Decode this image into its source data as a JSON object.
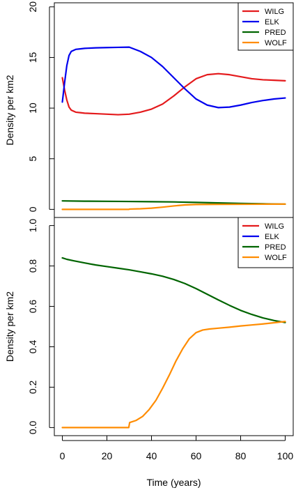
{
  "chart_data": [
    {
      "type": "line",
      "title": "",
      "xlabel": "",
      "ylabel": "Density per km2",
      "xlim": [
        -3.6,
        103.6
      ],
      "ylim": [
        -0.8,
        20.4
      ],
      "x_ticks": [],
      "y_ticks": [
        0,
        5,
        10,
        15,
        20
      ],
      "y_tick_labels": [
        "0",
        "5",
        "10",
        "15",
        "20"
      ],
      "legend_position": "top-right",
      "series": [
        {
          "name": "WILG",
          "color": "#e41a1c",
          "x": [
            0,
            1,
            2,
            3,
            4,
            6,
            8,
            10,
            15,
            20,
            25,
            30,
            35,
            40,
            45,
            50,
            55,
            60,
            65,
            70,
            75,
            80,
            85,
            90,
            95,
            100
          ],
          "y": [
            13.0,
            11.8,
            10.8,
            10.1,
            9.8,
            9.6,
            9.55,
            9.5,
            9.45,
            9.4,
            9.35,
            9.4,
            9.6,
            9.9,
            10.4,
            11.2,
            12.1,
            12.9,
            13.3,
            13.4,
            13.3,
            13.1,
            12.9,
            12.8,
            12.75,
            12.7
          ]
        },
        {
          "name": "ELK",
          "color": "#0000ee",
          "x": [
            0,
            1,
            2,
            3,
            4,
            6,
            8,
            10,
            15,
            20,
            25,
            30,
            35,
            40,
            45,
            50,
            55,
            60,
            65,
            70,
            75,
            80,
            85,
            90,
            95,
            100
          ],
          "y": [
            10.6,
            12.5,
            14.2,
            15.2,
            15.6,
            15.8,
            15.85,
            15.9,
            15.95,
            15.98,
            16.0,
            16.02,
            15.6,
            15.0,
            14.1,
            13.0,
            11.9,
            10.9,
            10.3,
            10.05,
            10.1,
            10.3,
            10.55,
            10.75,
            10.9,
            11.0
          ]
        },
        {
          "name": "PRED",
          "color": "#006400",
          "x": [
            0,
            10,
            20,
            30,
            40,
            50,
            60,
            70,
            80,
            90,
            100
          ],
          "y": [
            0.84,
            0.81,
            0.795,
            0.78,
            0.76,
            0.735,
            0.69,
            0.635,
            0.585,
            0.55,
            0.52
          ]
        },
        {
          "name": "WOLF",
          "color": "#ff8c00",
          "x": [
            0,
            10,
            20,
            29.9,
            30.1,
            35,
            40,
            45,
            50,
            55,
            60,
            65,
            70,
            80,
            90,
            100
          ],
          "y": [
            0.0,
            0.0,
            0.0,
            0.0,
            0.03,
            0.06,
            0.12,
            0.22,
            0.34,
            0.44,
            0.48,
            0.49,
            0.495,
            0.505,
            0.515,
            0.525
          ]
        }
      ]
    },
    {
      "type": "line",
      "title": "",
      "xlabel": "Time (years)",
      "ylabel": "Density per km2",
      "xlim": [
        -3.6,
        103.6
      ],
      "ylim": [
        -0.04,
        1.04
      ],
      "x_ticks": [
        0,
        20,
        40,
        60,
        80,
        100
      ],
      "x_tick_labels": [
        "0",
        "20",
        "40",
        "60",
        "80",
        "100"
      ],
      "y_ticks": [
        0.0,
        0.2,
        0.4,
        0.6,
        0.8,
        1.0
      ],
      "y_tick_labels": [
        "0.0",
        "0.2",
        "0.4",
        "0.6",
        "0.8",
        "1.0"
      ],
      "legend_position": "top-right",
      "series": [
        {
          "name": "WILG",
          "color": "#e41a1c",
          "x": [],
          "y": []
        },
        {
          "name": "ELK",
          "color": "#0000ee",
          "x": [],
          "y": []
        },
        {
          "name": "PRED",
          "color": "#006400",
          "x": [
            0,
            2,
            5,
            10,
            15,
            20,
            25,
            30,
            35,
            40,
            45,
            50,
            55,
            60,
            65,
            70,
            75,
            80,
            85,
            90,
            95,
            100
          ],
          "y": [
            0.84,
            0.833,
            0.826,
            0.815,
            0.805,
            0.797,
            0.789,
            0.781,
            0.771,
            0.761,
            0.749,
            0.733,
            0.713,
            0.688,
            0.66,
            0.632,
            0.605,
            0.58,
            0.56,
            0.543,
            0.53,
            0.52
          ]
        },
        {
          "name": "WOLF",
          "color": "#ff8c00",
          "x": [
            0,
            5,
            10,
            15,
            20,
            25,
            29.8,
            30.2,
            33,
            36,
            39,
            42,
            45,
            48,
            51,
            54,
            57,
            60,
            63,
            66,
            70,
            75,
            80,
            85,
            90,
            95,
            100
          ],
          "y": [
            0.0,
            0.0,
            0.0,
            0.0,
            0.0,
            0.0,
            0.0,
            0.025,
            0.035,
            0.055,
            0.09,
            0.135,
            0.195,
            0.26,
            0.33,
            0.39,
            0.44,
            0.47,
            0.483,
            0.488,
            0.492,
            0.497,
            0.503,
            0.508,
            0.513,
            0.519,
            0.525
          ]
        }
      ]
    }
  ]
}
